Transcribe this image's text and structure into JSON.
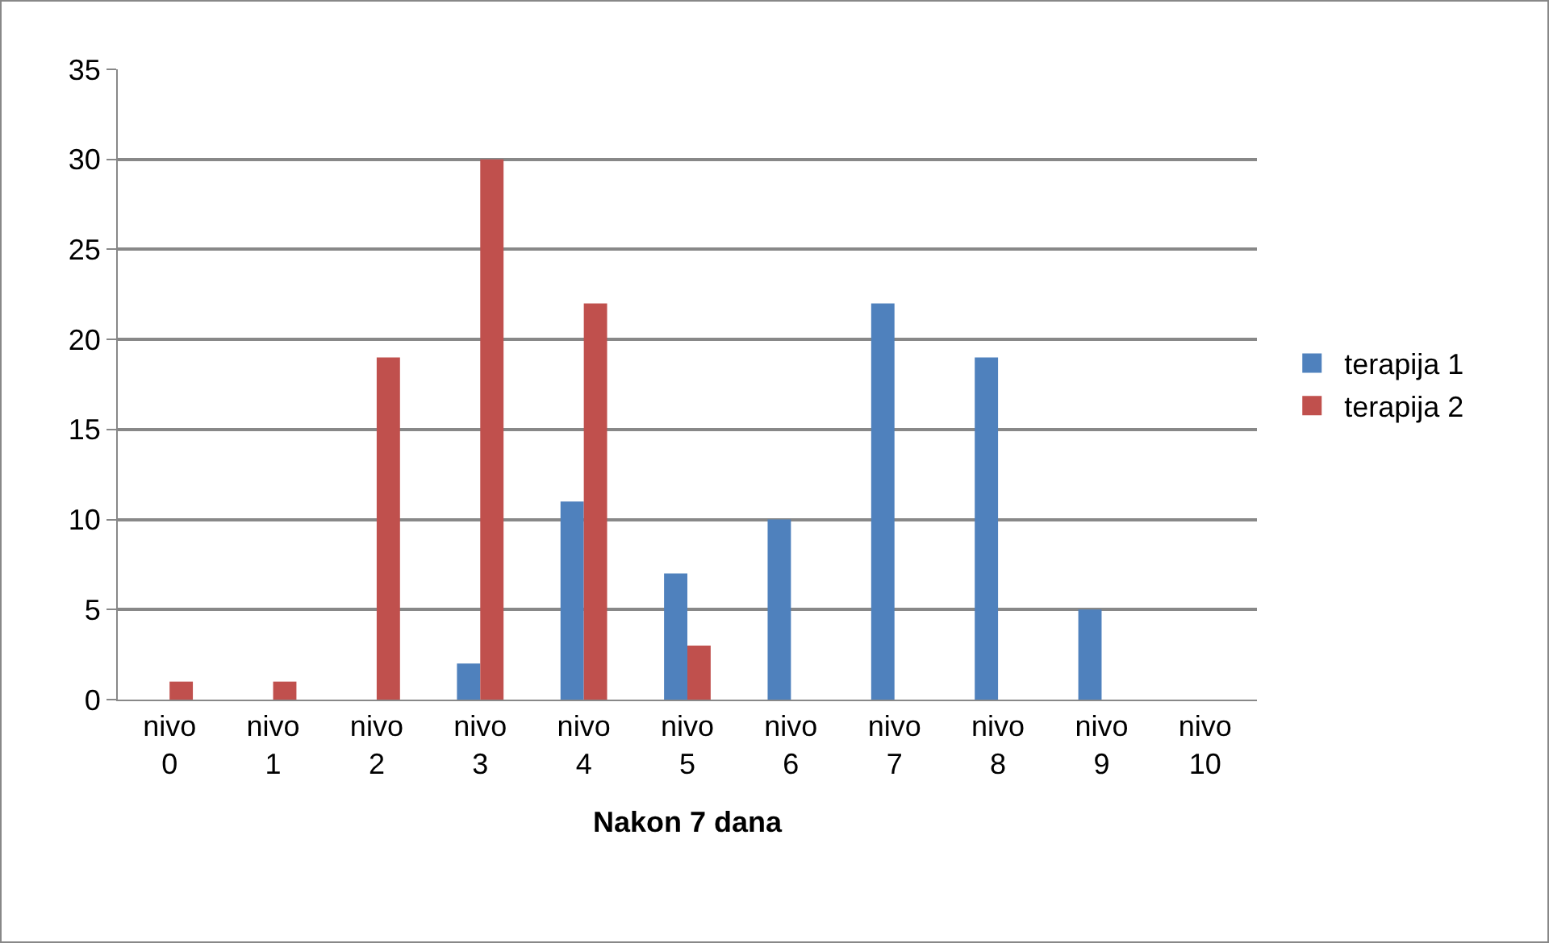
{
  "chart_data": {
    "type": "bar",
    "xlabel": "Nakon 7 dana",
    "categories": [
      "nivo 0",
      "nivo 1",
      "nivo 2",
      "nivo 3",
      "nivo 4",
      "nivo 5",
      "nivo 6",
      "nivo 7",
      "nivo 8",
      "nivo 9",
      "nivo 10"
    ],
    "series": [
      {
        "name": "terapija 1",
        "color": "#4f81bd",
        "values": [
          0,
          0,
          0,
          2,
          11,
          7,
          10,
          22,
          19,
          5,
          0
        ]
      },
      {
        "name": "terapija 2",
        "color": "#c0504d",
        "values": [
          1,
          1,
          19,
          30,
          22,
          3,
          0,
          0,
          0,
          0,
          0
        ]
      }
    ],
    "ylim": [
      0,
      35
    ],
    "yticks": [
      0,
      5,
      10,
      15,
      20,
      25,
      30,
      35
    ],
    "grid": "y",
    "legend": "right"
  }
}
